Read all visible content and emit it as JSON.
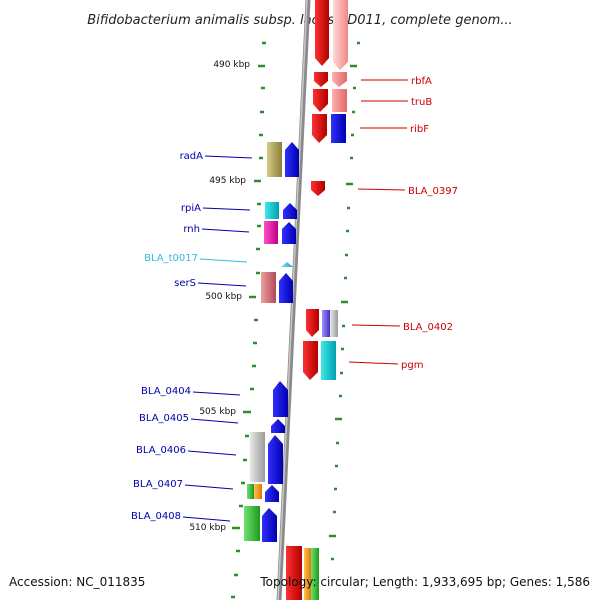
{
  "title": "Bifidobacterium animalis subsp. lactis AD011, complete genom...",
  "footer": {
    "accession": "Accession: NC_011835",
    "topology": "Topology: circular; Length: 1,933,695 bp; Genes: 1,586"
  },
  "colors": {
    "backbone": "#8a8a8a",
    "tick": "#2e8b2e",
    "plus_label": "#cc0000",
    "minus_label": "#0000aa",
    "rna_label": "#33bbdd"
  },
  "kbp_markers": [
    "490 kbp",
    "495 kbp",
    "500 kbp",
    "505 kbp",
    "510 kbp"
  ],
  "labels_right": [
    "rbfA",
    "truB",
    "ribF",
    "BLA_0397",
    "BLA_0402",
    "pgm"
  ],
  "labels_left": [
    "radA",
    "rpiA",
    "rnh",
    "BLA_t0017",
    "serS",
    "BLA_0404",
    "BLA_0405",
    "BLA_0406",
    "BLA_0407",
    "BLA_0408"
  ]
}
